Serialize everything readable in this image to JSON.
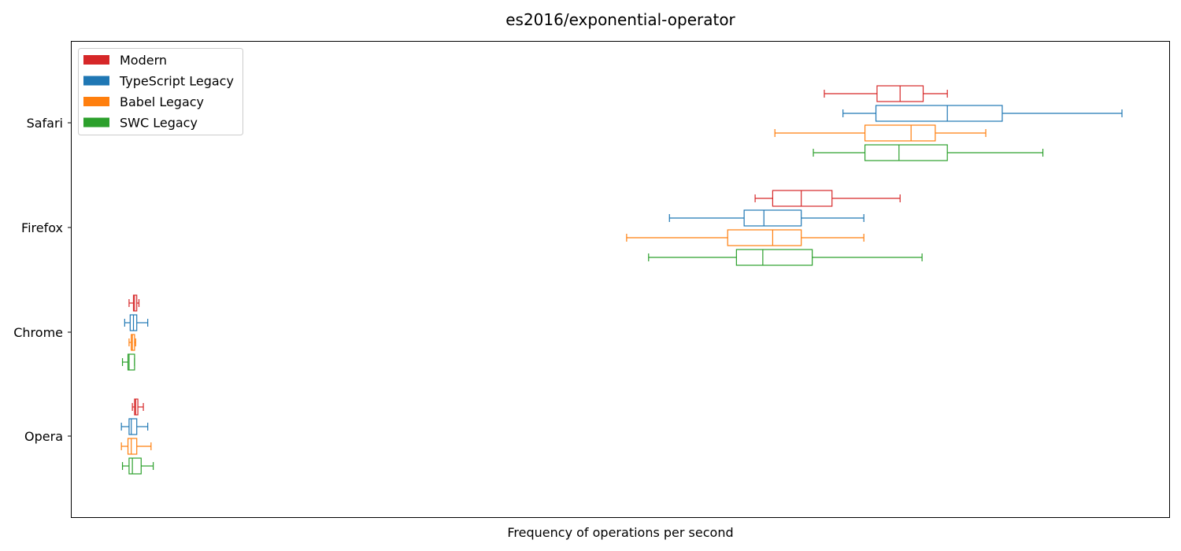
{
  "chart_data": {
    "type": "boxplot",
    "orientation": "horizontal",
    "title": "es2016/exponential-operator",
    "xlabel": "Frequency of operations per second",
    "ylabel": "",
    "x_ticks_visible": false,
    "xlim": [
      0,
      1000
    ],
    "categories": [
      "Safari",
      "Firefox",
      "Chrome",
      "Opera"
    ],
    "legend": {
      "placement": "top-left",
      "entries": [
        "Modern",
        "TypeScript Legacy",
        "Babel Legacy",
        "SWC Legacy"
      ]
    },
    "series": [
      {
        "name": "Modern",
        "color": "#d62728",
        "boxes": [
          {
            "category": "Safari",
            "whisker_low": 686,
            "q1": 734,
            "median": 755,
            "q3": 776,
            "whisker_high": 798
          },
          {
            "category": "Firefox",
            "whisker_low": 623,
            "q1": 639,
            "median": 665,
            "q3": 693,
            "whisker_high": 755
          },
          {
            "category": "Chrome",
            "whisker_low": 53,
            "q1": 57,
            "median": 58,
            "q3": 60,
            "whisker_high": 62
          },
          {
            "category": "Opera",
            "whisker_low": 56,
            "q1": 58,
            "median": 59,
            "q3": 61,
            "whisker_high": 66
          }
        ]
      },
      {
        "name": "TypeScript Legacy",
        "color": "#1f77b4",
        "boxes": [
          {
            "category": "Safari",
            "whisker_low": 703,
            "q1": 733,
            "median": 798,
            "q3": 848,
            "whisker_high": 957
          },
          {
            "category": "Firefox",
            "whisker_low": 545,
            "q1": 613,
            "median": 631,
            "q3": 665,
            "whisker_high": 722
          },
          {
            "category": "Chrome",
            "whisker_low": 49,
            "q1": 54,
            "median": 57,
            "q3": 60,
            "whisker_high": 70
          },
          {
            "category": "Opera",
            "whisker_low": 46,
            "q1": 53,
            "median": 55,
            "q3": 60,
            "whisker_high": 70
          }
        ]
      },
      {
        "name": "Babel Legacy",
        "color": "#ff7f0e",
        "boxes": [
          {
            "category": "Safari",
            "whisker_low": 641,
            "q1": 723,
            "median": 765,
            "q3": 787,
            "whisker_high": 833
          },
          {
            "category": "Firefox",
            "whisker_low": 506,
            "q1": 598,
            "median": 639,
            "q3": 665,
            "whisker_high": 722
          },
          {
            "category": "Chrome",
            "whisker_low": 53,
            "q1": 55,
            "median": 56,
            "q3": 58,
            "whisker_high": 59
          },
          {
            "category": "Opera",
            "whisker_low": 46,
            "q1": 52,
            "median": 55,
            "q3": 60,
            "whisker_high": 73
          }
        ]
      },
      {
        "name": "SWC Legacy",
        "color": "#2ca02c",
        "boxes": [
          {
            "category": "Safari",
            "whisker_low": 676,
            "q1": 723,
            "median": 754,
            "q3": 798,
            "whisker_high": 885
          },
          {
            "category": "Firefox",
            "whisker_low": 526,
            "q1": 606,
            "median": 630,
            "q3": 675,
            "whisker_high": 775
          },
          {
            "category": "Chrome",
            "whisker_low": 47,
            "q1": 52,
            "median": 53,
            "q3": 58,
            "whisker_high": 58
          },
          {
            "category": "Opera",
            "whisker_low": 47,
            "q1": 53,
            "median": 56,
            "q3": 64,
            "whisker_high": 75
          }
        ]
      }
    ]
  }
}
